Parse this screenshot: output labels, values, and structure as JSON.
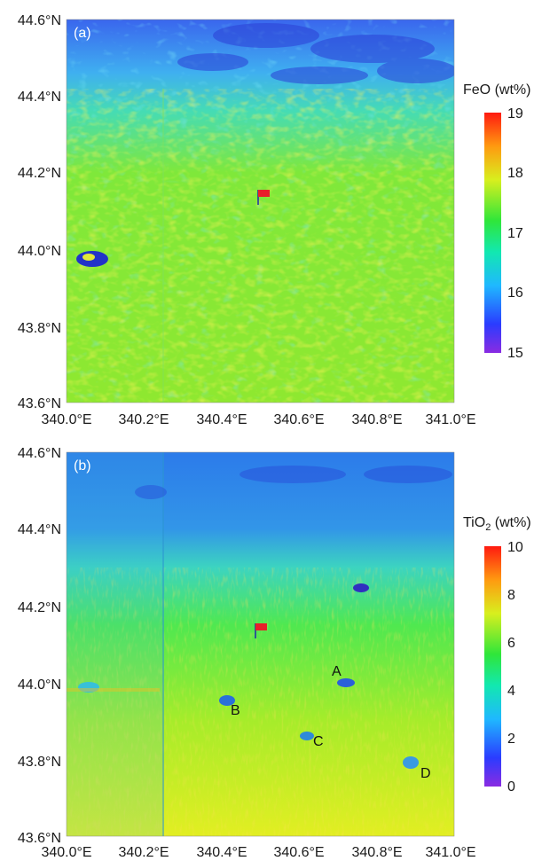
{
  "panels": [
    {
      "id": "a",
      "tag": "(a)",
      "colorbar": {
        "title_main": "FeO",
        "title_sub": "",
        "title_unit": " (wt%)",
        "ticks": [
          "19",
          "18",
          "17",
          "16",
          "15"
        ],
        "range": [
          15,
          19
        ]
      },
      "site_labels": []
    },
    {
      "id": "b",
      "tag": "(b)",
      "colorbar": {
        "title_main": "TiO",
        "title_sub": "2",
        "title_unit": " (wt%)",
        "ticks": [
          "10",
          "8",
          "6",
          "4",
          "2",
          "0"
        ],
        "range": [
          0,
          10
        ]
      },
      "site_labels": [
        {
          "name": "A",
          "lon": 340.68,
          "lat": 44.02
        },
        {
          "name": "B",
          "lon": 340.4,
          "lat": 43.93
        },
        {
          "name": "C",
          "lon": 340.64,
          "lat": 43.85
        },
        {
          "name": "D",
          "lon": 340.93,
          "lat": 43.78
        }
      ]
    }
  ],
  "lat_ticks": [
    "44.6°N",
    "44.4°N",
    "44.2°N",
    "44.0°N",
    "43.8°N",
    "43.6°N"
  ],
  "lon_ticks": [
    "340.0°E",
    "340.2°E",
    "340.4°E",
    "340.6°E",
    "340.8°E",
    "341.0°E"
  ],
  "landing_site": {
    "lon": 340.49,
    "lat": 44.12,
    "color": "#e8202a"
  }
}
